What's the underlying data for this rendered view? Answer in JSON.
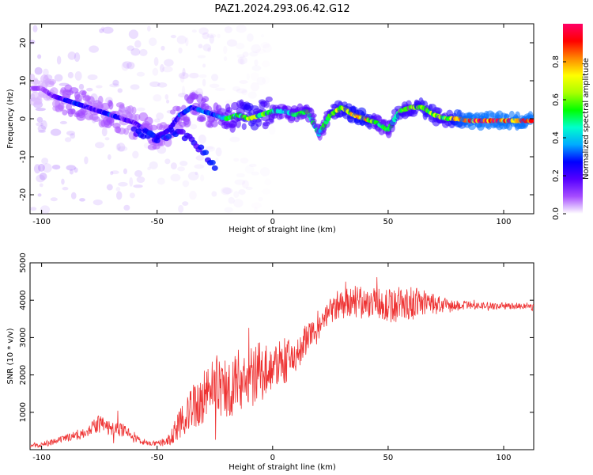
{
  "figure": {
    "title": "PAZ1.2024.293.06.42.G12"
  },
  "chart_data": [
    {
      "type": "heatmap",
      "title": "PAZ1.2024.293.06.42.G12",
      "xlabel": "Height of straight line (km)",
      "ylabel": "Frequency (Hz)",
      "xlim": [
        -105,
        113
      ],
      "ylim": [
        -25,
        25
      ],
      "xticks": [
        -100,
        -50,
        0,
        50,
        100
      ],
      "yticks": [
        -20,
        -10,
        0,
        10,
        20
      ],
      "grid": false,
      "colorbar": {
        "label": "Normalized spectral amplitude",
        "range": [
          0,
          1
        ],
        "ticks": [
          "0.0",
          "0.2",
          "0.4",
          "0.6",
          "0.8"
        ],
        "colormap": [
          "#ffffff",
          "#a64dff",
          "#5500ff",
          "#0000ff",
          "#00aaff",
          "#00ffcc",
          "#00ff00",
          "#aaff00",
          "#ffff00",
          "#ff8800",
          "#ff0000",
          "#ff0066"
        ]
      },
      "ridge": {
        "x": [
          -100,
          -95,
          -90,
          -85,
          -80,
          -75,
          -70,
          -65,
          -60,
          -55,
          -50,
          -45,
          -40,
          -35,
          -30,
          -25,
          -20,
          -15,
          -10,
          -5,
          0,
          5,
          10,
          15,
          20,
          25,
          30,
          35,
          40,
          45,
          50,
          55,
          60,
          65,
          70,
          75,
          80,
          85,
          90,
          95,
          100,
          105,
          110
        ],
        "frequency": [
          8,
          6,
          5,
          4,
          3,
          2,
          1,
          0,
          -1,
          -3,
          -5,
          -3,
          1,
          3,
          2,
          1,
          0,
          1,
          0,
          1,
          2,
          2,
          1,
          2,
          -4,
          1,
          3,
          1,
          0,
          -1,
          -3,
          2,
          3,
          3,
          1,
          0,
          0,
          -0.5,
          -0.5,
          -0.5,
          -0.5,
          -0.5,
          -0.5
        ],
        "amplitude": [
          0.1,
          0.15,
          0.25,
          0.3,
          0.25,
          0.2,
          0.3,
          0.2,
          0.2,
          0.25,
          0.25,
          0.2,
          0.3,
          0.3,
          0.35,
          0.35,
          0.5,
          0.55,
          0.7,
          0.6,
          0.55,
          0.5,
          0.5,
          0.55,
          0.45,
          0.6,
          0.7,
          0.75,
          0.8,
          0.55,
          0.5,
          0.65,
          0.6,
          0.7,
          0.65,
          0.6,
          0.85,
          0.95,
          0.95,
          0.95,
          0.95,
          0.95,
          0.95
        ]
      },
      "secondary_branch": {
        "x": [
          -60,
          -55,
          -50,
          -45,
          -40,
          -35,
          -30,
          -25
        ],
        "frequency": [
          -3,
          -4,
          -5,
          -4,
          -3,
          -6,
          -9,
          -12
        ]
      }
    },
    {
      "type": "line",
      "xlabel": "Height of straight line (km)",
      "ylabel": "SNR (10 * v/v)",
      "xlim": [
        -105,
        113
      ],
      "ylim": [
        0,
        5000
      ],
      "xticks": [
        -100,
        -50,
        0,
        50,
        100
      ],
      "yticks": [
        1000,
        2000,
        3000,
        4000,
        5000
      ],
      "grid": false,
      "color": "#ee3333",
      "x": [
        -105,
        -100,
        -95,
        -90,
        -85,
        -80,
        -75,
        -70,
        -65,
        -60,
        -55,
        -50,
        -45,
        -40,
        -35,
        -30,
        -25,
        -20,
        -15,
        -10,
        -5,
        0,
        5,
        10,
        15,
        20,
        25,
        30,
        35,
        40,
        45,
        50,
        55,
        60,
        65,
        70,
        75,
        80,
        85,
        90,
        95,
        100,
        105,
        110,
        113
      ],
      "y": [
        100,
        150,
        200,
        300,
        400,
        500,
        700,
        550,
        550,
        300,
        200,
        150,
        250,
        700,
        1100,
        1400,
        1800,
        1600,
        1900,
        1900,
        2100,
        2200,
        2300,
        2500,
        3000,
        3200,
        3700,
        3850,
        3950,
        3900,
        3950,
        3850,
        3900,
        3900,
        3950,
        3900,
        3850,
        3850,
        3850,
        3850,
        3850,
        3850,
        3850,
        3850,
        3800
      ],
      "spread": [
        60,
        80,
        80,
        90,
        120,
        150,
        250,
        200,
        200,
        120,
        80,
        60,
        150,
        400,
        600,
        700,
        800,
        900,
        800,
        900,
        800,
        600,
        600,
        550,
        400,
        350,
        350,
        400,
        450,
        450,
        400,
        450,
        500,
        450,
        350,
        300,
        200,
        150,
        120,
        100,
        100,
        90,
        90,
        90,
        90
      ]
    }
  ]
}
